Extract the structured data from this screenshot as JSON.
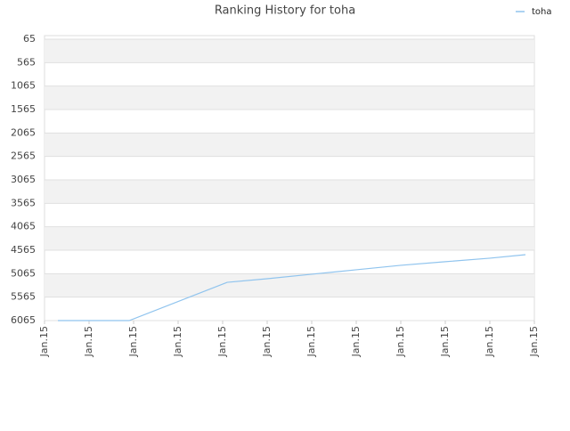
{
  "chart_data": {
    "type": "line",
    "title": "Ranking History for toha",
    "x": [
      0.3,
      1.9,
      4.1,
      5,
      6,
      7,
      8,
      9,
      10,
      10.8
    ],
    "series": [
      {
        "name": "toha",
        "color": "#90c4ee",
        "values": [
          6065,
          6065,
          5250,
          5172,
          5077,
          4982,
          4887,
          4810,
          4735,
          4660
        ]
      }
    ],
    "xlim": [
      0,
      11
    ],
    "xticks": [
      {
        "value": 0,
        "label": "Jan.15"
      },
      {
        "value": 1,
        "label": "Jan.15"
      },
      {
        "value": 2,
        "label": "Jan.15"
      },
      {
        "value": 3,
        "label": "Jan.15"
      },
      {
        "value": 4,
        "label": "Jan.15"
      },
      {
        "value": 5,
        "label": "Jan.15"
      },
      {
        "value": 6,
        "label": "Jan.15"
      },
      {
        "value": 7,
        "label": "Jan.15"
      },
      {
        "value": 8,
        "label": "Jan.15"
      },
      {
        "value": 9,
        "label": "Jan.15"
      },
      {
        "value": 10,
        "label": "Jan.15"
      },
      {
        "value": 11,
        "label": "Jan.15"
      }
    ],
    "ylim": [
      6065,
      65
    ],
    "yticks": [
      65,
      565,
      1065,
      1565,
      2065,
      2565,
      3065,
      3565,
      4065,
      4565,
      5065,
      5565,
      6065
    ],
    "grid": true,
    "legend": "top-right"
  }
}
